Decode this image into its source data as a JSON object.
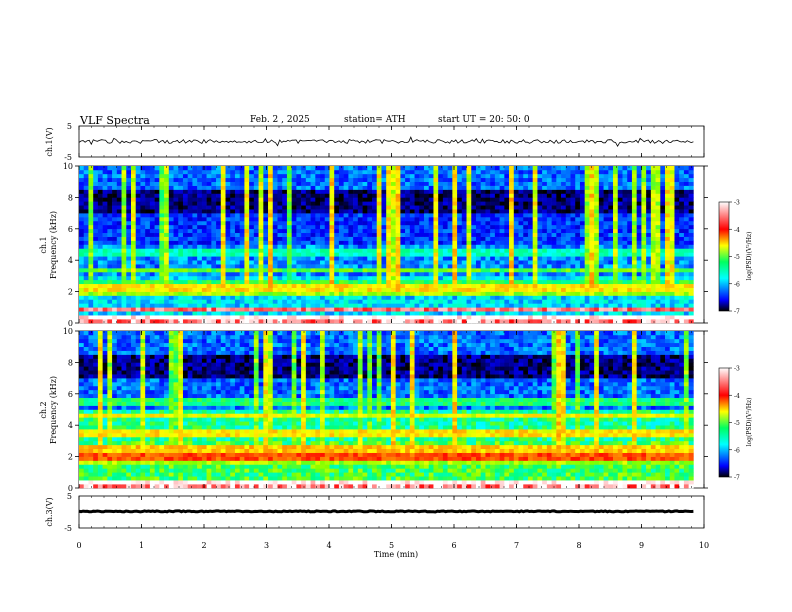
{
  "header": {
    "title": "VLF  Spectra",
    "date": "Feb. 2  , 2025",
    "station": "station= ATH",
    "start_ut": "start  UT  =   20: 50: 0"
  },
  "colors": {
    "spectrum": [
      "#000000",
      "#00008b",
      "#0000ff",
      "#0080ff",
      "#00ffff",
      "#00ff80",
      "#80ff00",
      "#ffff00",
      "#ff8000",
      "#ff0000",
      "#ffffff"
    ]
  },
  "chart_data": [
    {
      "type": "line",
      "panel": "ch1-waveform",
      "ylabel": "ch.1(V)",
      "ylim": [
        -5,
        5
      ],
      "yticks": [
        "5",
        "-5"
      ],
      "xlim": [
        0,
        10
      ],
      "trace_level": 0,
      "trace_jitter": 0.6
    },
    {
      "type": "heatmap",
      "panel": "ch1-spectrogram",
      "ylabel": "ch.1\nFrequency  (kHz)",
      "ylim": [
        0,
        10
      ],
      "yticks": [
        "0",
        "2",
        "4",
        "6",
        "8",
        "10"
      ],
      "xlim": [
        0,
        9.83
      ],
      "colorbar": {
        "label": "log(PSD)(V²/Hz)",
        "range": [
          -7,
          -3
        ],
        "ticks": [
          "-3",
          "-4",
          "-5",
          "-6",
          "-7"
        ]
      },
      "bands": [
        {
          "freq_khz": 0.3,
          "level": -3.0
        },
        {
          "freq_khz": 0.9,
          "level": -3.3
        },
        {
          "freq_khz": 1.9,
          "level": -4.6
        },
        {
          "freq_khz": 2.3,
          "level": -4.3
        },
        {
          "freq_khz": 2.6,
          "level": -4.9
        },
        {
          "freq_khz": 3.4,
          "level": -4.8
        },
        {
          "freq_khz": 4.5,
          "level": -5.2
        }
      ]
    },
    {
      "type": "heatmap",
      "panel": "ch2-spectrogram",
      "ylabel": "ch.2\nFrequency  (kHz)",
      "ylim": [
        0,
        10
      ],
      "yticks": [
        "0",
        "2",
        "4",
        "6",
        "8",
        "10"
      ],
      "xlim": [
        0,
        9.83
      ],
      "colorbar": {
        "label": "log(PSD)(V²/Hz)",
        "range": [
          -7,
          -3
        ],
        "ticks": [
          "-3",
          "-4",
          "-5",
          "-6",
          "-7"
        ]
      },
      "bands": [
        {
          "freq_khz": 0.3,
          "level": -3.0
        },
        {
          "freq_khz": 1.6,
          "level": -4.6
        },
        {
          "freq_khz": 2.0,
          "level": -3.8
        },
        {
          "freq_khz": 2.5,
          "level": -4.2
        },
        {
          "freq_khz": 3.5,
          "level": -4.3
        },
        {
          "freq_khz": 4.6,
          "level": -4.4
        },
        {
          "freq_khz": 5.5,
          "level": -5.0
        }
      ]
    },
    {
      "type": "line",
      "panel": "ch3-waveform",
      "ylabel": "ch.3(V)",
      "ylim": [
        -5,
        5
      ],
      "yticks": [
        "5",
        "-5"
      ],
      "xlim": [
        0,
        10
      ],
      "trace_level": 0.2,
      "trace_jitter": 0.15
    }
  ],
  "xaxis": {
    "label": "Time  (min)",
    "ticks": [
      "0",
      "1",
      "2",
      "3",
      "4",
      "5",
      "6",
      "7",
      "8",
      "9",
      "10"
    ]
  }
}
